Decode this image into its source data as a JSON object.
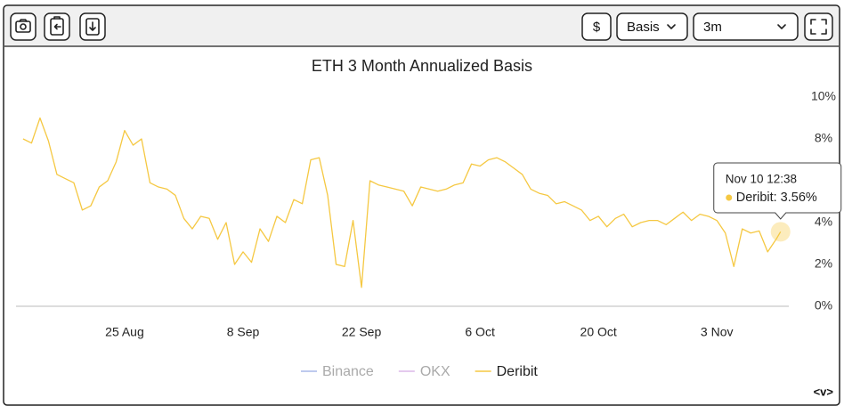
{
  "toolbar": {
    "currency": "$",
    "metric": "Basis",
    "range": "3m"
  },
  "corner_label": "<v>",
  "chart_data": {
    "type": "line",
    "title": "ETH 3 Month Annualized Basis",
    "x": [
      "Aug 13 00:00",
      "Aug 14 00:00",
      "Aug 15 00:00",
      "Aug 16 00:00",
      "Aug 17 00:00",
      "Aug 18 00:00",
      "Aug 19 00:00",
      "Aug 20 00:00",
      "Aug 21 00:00",
      "Aug 22 00:00",
      "Aug 23 00:00",
      "Aug 24 00:00",
      "Aug 25 00:00",
      "Aug 26 00:00",
      "Aug 27 00:00",
      "Aug 28 00:00",
      "Aug 29 00:00",
      "Aug 30 00:00",
      "Aug 31 00:00",
      "Sep 01 00:00",
      "Sep 02 00:00",
      "Sep 03 00:00",
      "Sep 04 00:00",
      "Sep 05 00:00",
      "Sep 06 00:00",
      "Sep 07 00:00",
      "Sep 08 00:00",
      "Sep 09 00:00",
      "Sep 10 00:00",
      "Sep 11 00:00",
      "Sep 12 00:00",
      "Sep 13 00:00",
      "Sep 14 00:00",
      "Sep 15 00:00",
      "Sep 16 00:00",
      "Sep 17 00:00",
      "Sep 18 00:00",
      "Sep 19 00:00",
      "Sep 20 00:00",
      "Sep 21 00:00",
      "Sep 22 00:00",
      "Sep 23 00:00",
      "Sep 24 00:00",
      "Sep 25 00:00",
      "Sep 26 00:00",
      "Sep 27 00:00",
      "Sep 28 00:00",
      "Sep 29 00:00",
      "Sep 30 00:00",
      "Oct 01 00:00",
      "Oct 02 00:00",
      "Oct 03 00:00",
      "Oct 04 00:00",
      "Oct 05 00:00",
      "Oct 06 00:00",
      "Oct 07 00:00",
      "Oct 08 00:00",
      "Oct 09 00:00",
      "Oct 10 00:00",
      "Oct 11 00:00",
      "Oct 12 00:00",
      "Oct 13 00:00",
      "Oct 14 00:00",
      "Oct 15 00:00",
      "Oct 16 00:00",
      "Oct 17 00:00",
      "Oct 18 00:00",
      "Oct 19 00:00",
      "Oct 20 00:00",
      "Oct 21 00:00",
      "Oct 22 00:00",
      "Oct 23 00:00",
      "Oct 24 00:00",
      "Oct 25 00:00",
      "Oct 26 00:00",
      "Oct 27 00:00",
      "Oct 28 00:00",
      "Oct 29 00:00",
      "Oct 30 00:00",
      "Oct 31 00:00",
      "Nov 01 00:00",
      "Nov 02 00:00",
      "Nov 03 00:00",
      "Nov 04 00:00",
      "Nov 05 00:00",
      "Nov 06 00:00",
      "Nov 07 00:00",
      "Nov 08 00:00",
      "Nov 09 00:00",
      "Nov 10 00:00",
      "Nov 10 12:38"
    ],
    "series": [
      {
        "name": "Binance",
        "color": "#a9b8e8",
        "visible": false,
        "values": [
          null,
          null,
          null,
          null,
          null,
          null,
          null,
          null,
          null,
          null,
          null,
          null,
          null,
          null,
          null,
          null,
          null,
          null,
          null,
          null,
          null,
          null,
          null,
          null,
          null,
          null,
          null,
          null,
          null,
          null,
          null,
          null,
          null,
          null,
          null,
          null,
          null,
          null,
          null,
          null,
          null,
          null,
          null,
          null,
          null,
          null,
          null,
          null,
          null,
          null,
          null,
          null,
          null,
          null,
          null,
          null,
          null,
          null,
          null,
          null,
          null,
          null,
          null,
          null,
          null,
          null,
          null,
          null,
          null,
          null,
          null,
          null,
          null,
          null,
          null,
          null,
          null,
          null,
          null,
          null,
          null,
          null,
          null,
          null,
          null,
          null,
          null,
          null,
          null,
          null,
          null
        ]
      },
      {
        "name": "OKX",
        "color": "#dcb8e8",
        "visible": false,
        "values": [
          null,
          null,
          null,
          null,
          null,
          null,
          null,
          null,
          null,
          null,
          null,
          null,
          null,
          null,
          null,
          null,
          null,
          null,
          null,
          null,
          null,
          null,
          null,
          null,
          null,
          null,
          null,
          null,
          null,
          null,
          null,
          null,
          null,
          null,
          null,
          null,
          null,
          null,
          null,
          null,
          null,
          null,
          null,
          null,
          null,
          null,
          null,
          null,
          null,
          null,
          null,
          null,
          null,
          null,
          null,
          null,
          null,
          null,
          null,
          null,
          null,
          null,
          null,
          null,
          null,
          null,
          null,
          null,
          null,
          null,
          null,
          null,
          null,
          null,
          null,
          null,
          null,
          null,
          null,
          null,
          null,
          null,
          null,
          null,
          null,
          null,
          null,
          null,
          null,
          null,
          null
        ]
      },
      {
        "name": "Deribit",
        "color": "#f5c842",
        "visible": true,
        "values": [
          8.0,
          7.8,
          9.0,
          7.9,
          6.3,
          6.1,
          5.9,
          4.6,
          4.8,
          5.7,
          6.0,
          6.9,
          8.4,
          7.7,
          8.0,
          5.9,
          5.7,
          5.6,
          5.3,
          4.2,
          3.7,
          4.3,
          4.2,
          3.2,
          4.0,
          2.0,
          2.6,
          2.1,
          3.7,
          3.1,
          4.3,
          4.0,
          5.1,
          4.9,
          7.0,
          7.1,
          5.3,
          2.0,
          1.9,
          4.1,
          0.9,
          6.0,
          5.8,
          5.7,
          5.6,
          5.5,
          4.8,
          5.7,
          5.6,
          5.5,
          5.6,
          5.8,
          5.9,
          6.8,
          6.7,
          7.0,
          7.1,
          6.9,
          6.6,
          6.3,
          5.6,
          5.4,
          5.3,
          4.9,
          5.0,
          4.8,
          4.6,
          4.1,
          4.3,
          3.8,
          4.2,
          4.4,
          3.8,
          4.0,
          4.1,
          4.1,
          3.9,
          4.2,
          4.5,
          4.1,
          4.4,
          4.3,
          4.1,
          3.5,
          1.9,
          3.7,
          3.5,
          3.6,
          2.6,
          3.2,
          3.56
        ]
      }
    ],
    "tooltip_label": "3.56%",
    "xlim": [
      "Aug 12 04:00",
      "Nov 11 12:00"
    ],
    "xticks": [
      {
        "value": "Aug 25 00:00",
        "label": "25 Aug"
      },
      {
        "value": "Sep 08 00:00",
        "label": "8 Sep"
      },
      {
        "value": "Sep 22 00:00",
        "label": "22 Sep"
      },
      {
        "value": "Oct 06 00:00",
        "label": "6 Oct"
      },
      {
        "value": "Oct 20 00:00",
        "label": "20 Oct"
      },
      {
        "value": "Nov 03 00:00",
        "label": "3 Nov"
      }
    ],
    "ylim": [
      0,
      10
    ],
    "yticks": [
      {
        "value": 0,
        "label": "0%"
      },
      {
        "value": 2,
        "label": "2%"
      },
      {
        "value": 4,
        "label": "4%"
      },
      {
        "value": 6,
        "label": "6%"
      },
      {
        "value": 8,
        "label": "8%"
      },
      {
        "value": 10,
        "label": "10%"
      }
    ],
    "grid": false
  }
}
